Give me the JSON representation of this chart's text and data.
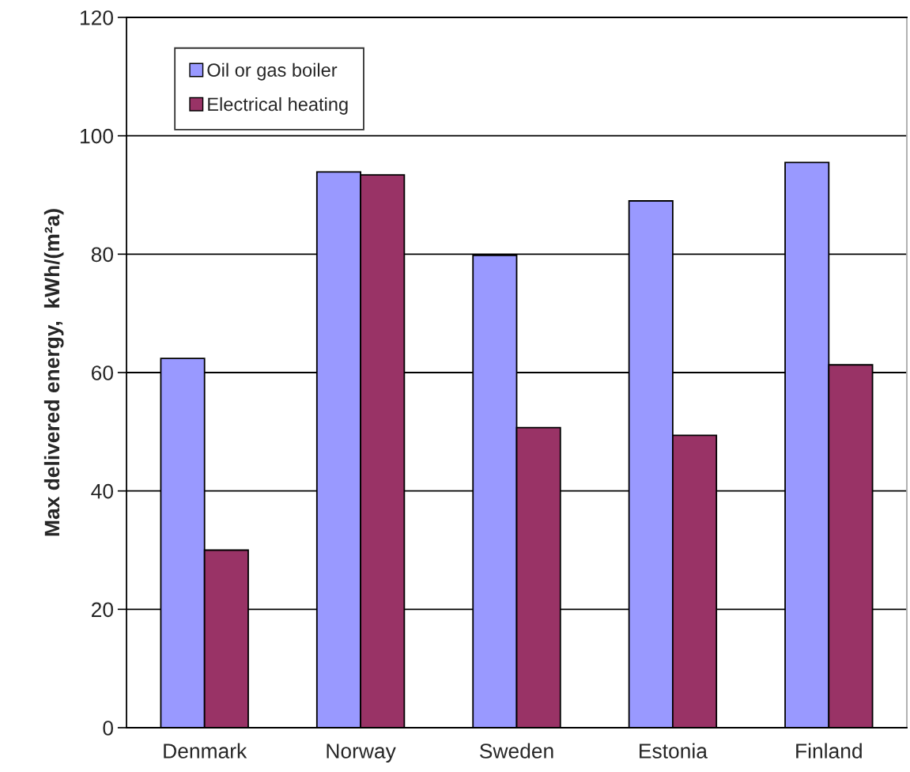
{
  "chart_data": {
    "type": "bar",
    "ylabel": "Max delivered energy,  kWh/(m²a)",
    "categories": [
      "Denmark",
      "Norway",
      "Sweden",
      "Estonia",
      "Finland"
    ],
    "series": [
      {
        "name": "Oil or gas boiler",
        "color": "#9999ff",
        "values": [
          62.4,
          93.9,
          79.8,
          89.0,
          95.5
        ]
      },
      {
        "name": "Electrical heating",
        "color": "#993366",
        "values": [
          30,
          93.4,
          50.7,
          49.4,
          61.3
        ]
      }
    ],
    "ylim": [
      0,
      120
    ],
    "yticks": [
      0,
      20,
      40,
      60,
      80,
      100,
      120
    ],
    "grid": "y",
    "legend": "top left"
  }
}
